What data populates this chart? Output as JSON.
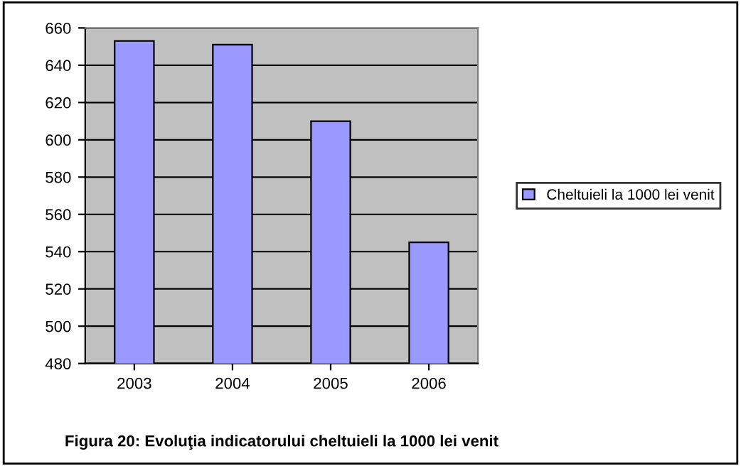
{
  "chart_data": {
    "type": "bar",
    "title": "Figura 20: Evoluţia indicatorului cheltuieli la 1000 lei venit",
    "categories": [
      "2003",
      "2004",
      "2005",
      "2006"
    ],
    "series": [
      {
        "name": "Cheltuieli la 1000 lei venit",
        "color": "#9999ff",
        "values": [
          653,
          651,
          610,
          545
        ]
      }
    ],
    "ylim": [
      480,
      660
    ],
    "yticks": [
      480,
      500,
      520,
      540,
      560,
      580,
      600,
      620,
      640,
      660
    ],
    "grid": "y",
    "legend": "right"
  }
}
